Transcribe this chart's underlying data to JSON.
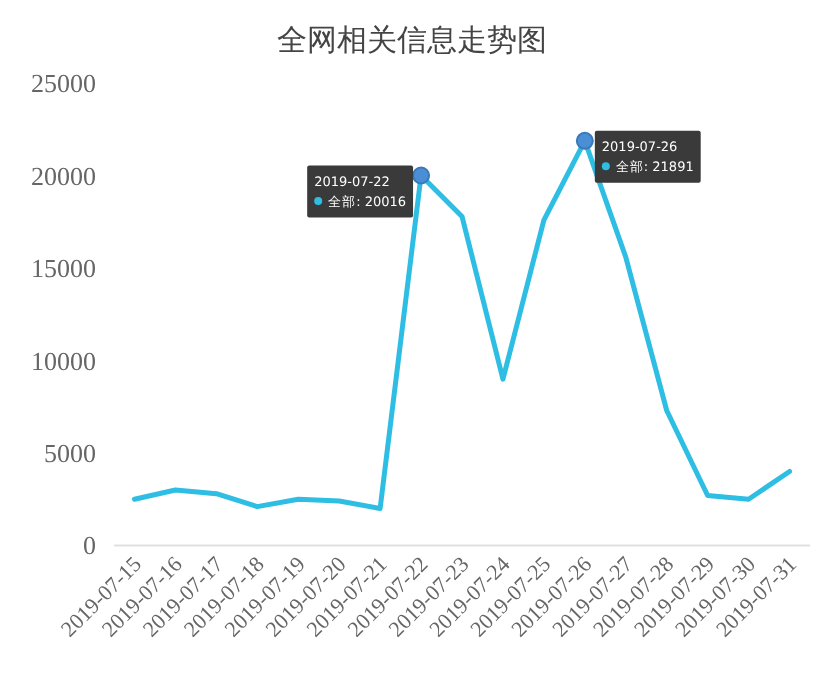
{
  "chart_data": {
    "type": "line",
    "title": "全网相关信息走势图",
    "categories": [
      "2019-07-15",
      "2019-07-16",
      "2019-07-17",
      "2019-07-18",
      "2019-07-19",
      "2019-07-20",
      "2019-07-21",
      "2019-07-22",
      "2019-07-23",
      "2019-07-24",
      "2019-07-25",
      "2019-07-26",
      "2019-07-27",
      "2019-07-28",
      "2019-07-29",
      "2019-07-30",
      "2019-07-31"
    ],
    "series": [
      {
        "color": "#2ebde3",
        "values": [
          2500,
          3000,
          2800,
          2100,
          2500,
          2400,
          2000,
          20016,
          17800,
          9000,
          17600,
          21891,
          15600,
          7300,
          2700,
          2500,
          4000
        ]
      }
    ],
    "ylim": [
      0,
      25000
    ],
    "yticks": [
      0,
      5000,
      10000,
      15000,
      20000,
      25000
    ],
    "grid": false,
    "marker": "none",
    "annotations": [
      {
        "text": "2019-07-22",
        "x": "2019-07-22",
        "y": 20016
      },
      {
        "text": "全部: 20016",
        "x": "2019-07-22",
        "y": 20016
      },
      {
        "text": "2019-07-26",
        "x": "2019-07-26",
        "y": 21891
      },
      {
        "text": "全部: 21891",
        "x": "2019-07-26",
        "y": 21891
      }
    ]
  }
}
